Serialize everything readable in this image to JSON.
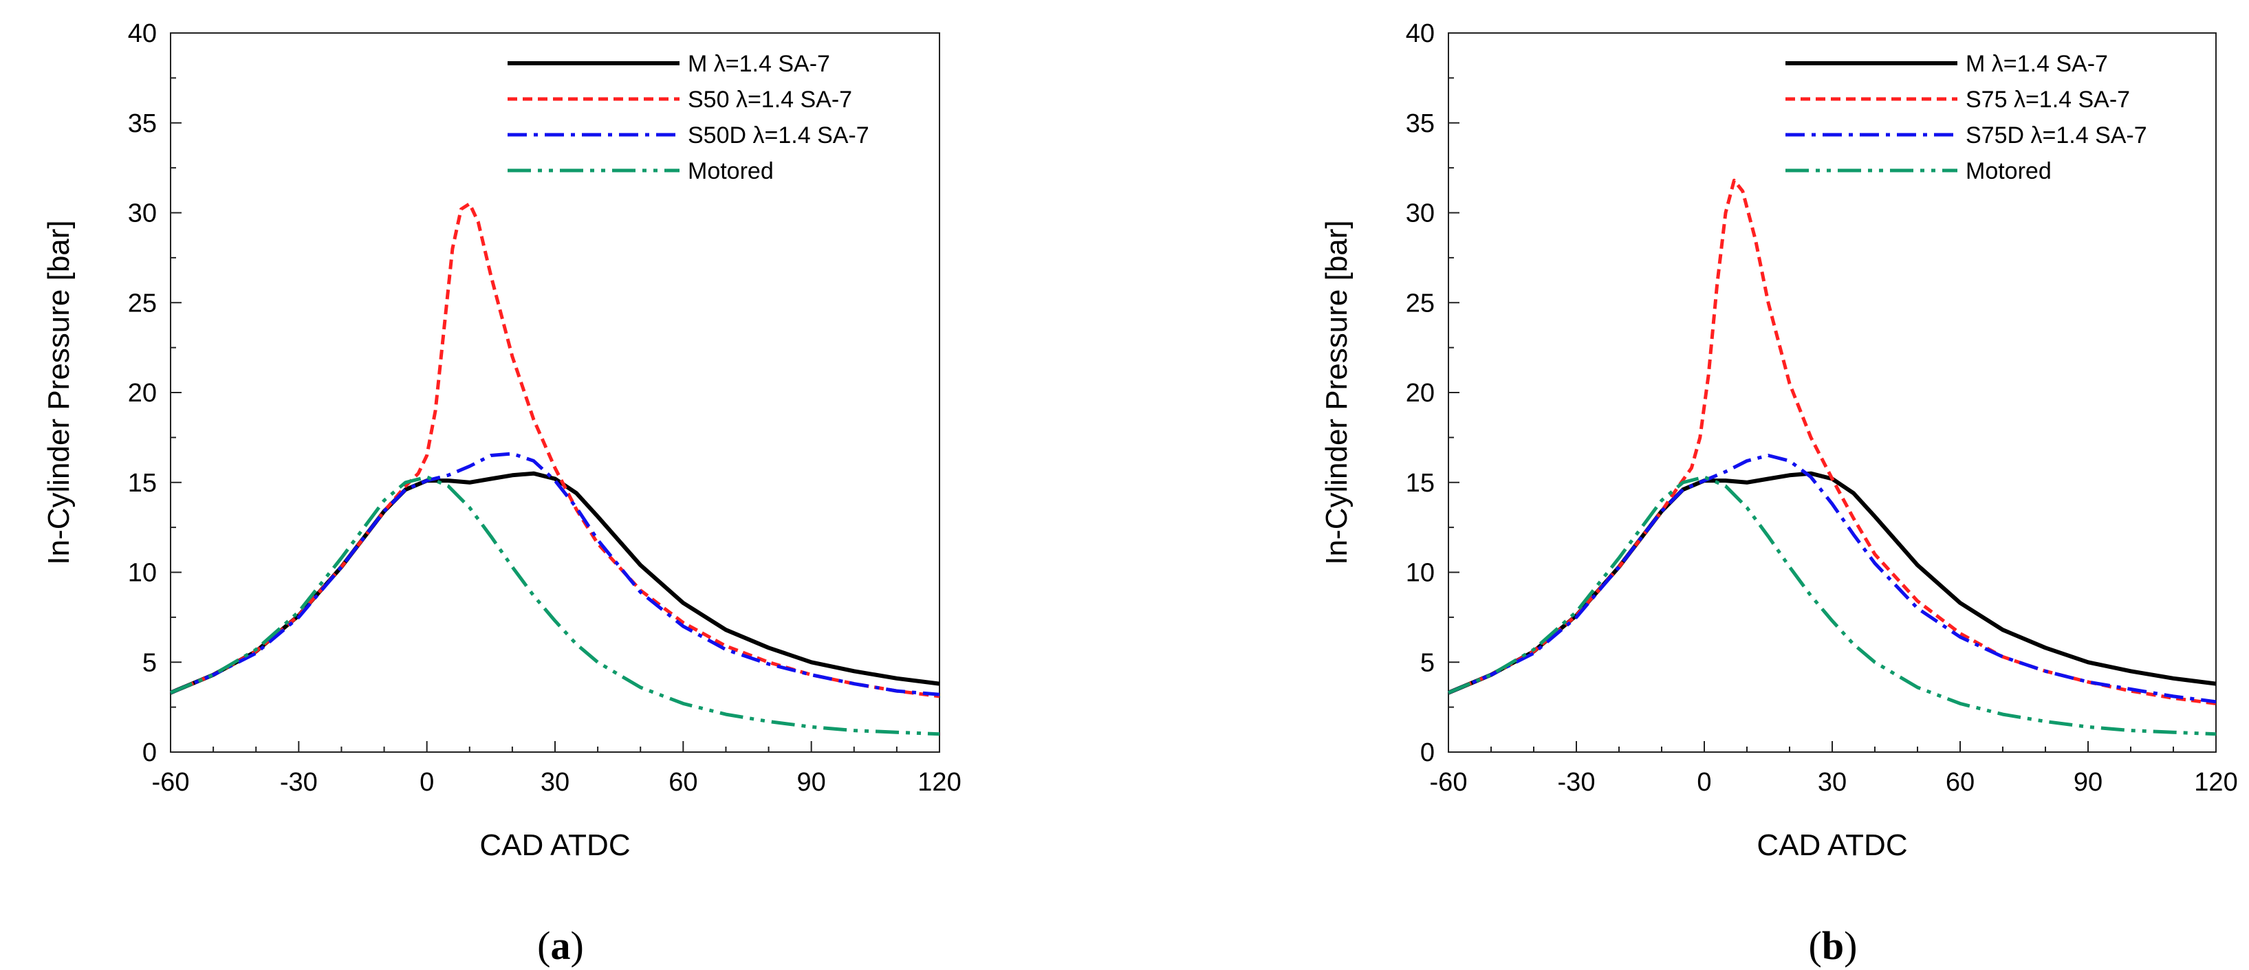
{
  "chart_data": [
    {
      "type": "line",
      "panel": "(a)",
      "caption_letter": "a",
      "xlabel": "CAD ATDC",
      "ylabel": "In-Cylinder Pressure [bar]",
      "xlim": [
        -60,
        120
      ],
      "ylim": [
        0,
        40
      ],
      "xticks": [
        -60,
        -30,
        0,
        30,
        60,
        90,
        120
      ],
      "yticks": [
        0,
        5,
        10,
        15,
        20,
        25,
        30,
        35,
        40
      ],
      "legend_position": "top-right",
      "series": [
        {
          "name": "M λ=1.4 SA-7",
          "color": "#000000",
          "style": "solid",
          "x": [
            -60,
            -50,
            -40,
            -30,
            -20,
            -10,
            -5,
            0,
            5,
            10,
            15,
            20,
            25,
            30,
            35,
            40,
            50,
            60,
            70,
            80,
            90,
            100,
            110,
            120
          ],
          "y": [
            3.3,
            4.3,
            5.6,
            7.6,
            10.3,
            13.4,
            14.6,
            15.1,
            15.1,
            15.0,
            15.2,
            15.4,
            15.5,
            15.2,
            14.4,
            13.1,
            10.4,
            8.3,
            6.8,
            5.8,
            5.0,
            4.5,
            4.1,
            3.8
          ]
        },
        {
          "name": "S50 λ=1.4 SA-7",
          "color": "#ff2020",
          "style": "dashed",
          "x": [
            -60,
            -50,
            -40,
            -30,
            -20,
            -10,
            -5,
            -2,
            0,
            2,
            4,
            6,
            8,
            10,
            12,
            15,
            20,
            25,
            30,
            35,
            40,
            50,
            60,
            70,
            80,
            90,
            100,
            110,
            120
          ],
          "y": [
            3.3,
            4.3,
            5.6,
            7.6,
            10.3,
            13.4,
            14.8,
            15.5,
            16.5,
            19.0,
            23.5,
            28.0,
            30.2,
            30.5,
            29.5,
            26.5,
            22.0,
            18.5,
            15.8,
            13.5,
            11.6,
            9.0,
            7.2,
            5.9,
            5.0,
            4.3,
            3.8,
            3.4,
            3.1
          ]
        },
        {
          "name": "S50D λ=1.4 SA-7",
          "color": "#1010ee",
          "style": "dashdot",
          "x": [
            -60,
            -50,
            -40,
            -30,
            -20,
            -10,
            -5,
            0,
            5,
            10,
            15,
            20,
            25,
            30,
            35,
            40,
            50,
            60,
            70,
            80,
            90,
            100,
            110,
            120
          ],
          "y": [
            3.3,
            4.3,
            5.5,
            7.5,
            10.3,
            13.4,
            14.6,
            15.1,
            15.4,
            15.9,
            16.5,
            16.6,
            16.2,
            15.1,
            13.6,
            11.8,
            8.9,
            7.0,
            5.7,
            4.9,
            4.3,
            3.8,
            3.4,
            3.2
          ]
        },
        {
          "name": "Motored",
          "color": "#0f9a6a",
          "style": "dashdotdot",
          "x": [
            -60,
            -50,
            -40,
            -30,
            -20,
            -10,
            -5,
            0,
            5,
            10,
            15,
            20,
            25,
            30,
            35,
            40,
            50,
            60,
            70,
            80,
            90,
            100,
            110,
            120
          ],
          "y": [
            3.3,
            4.3,
            5.7,
            7.8,
            10.8,
            14.0,
            15.0,
            15.3,
            14.8,
            13.6,
            12.0,
            10.3,
            8.7,
            7.3,
            6.0,
            5.0,
            3.6,
            2.7,
            2.1,
            1.7,
            1.4,
            1.2,
            1.1,
            1.0
          ]
        }
      ]
    },
    {
      "type": "line",
      "panel": "(b)",
      "caption_letter": "b",
      "xlabel": "CAD ATDC",
      "ylabel": "In-Cylinder Pressure [bar]",
      "xlim": [
        -60,
        120
      ],
      "ylim": [
        0,
        40
      ],
      "xticks": [
        -60,
        -30,
        0,
        30,
        60,
        90,
        120
      ],
      "yticks": [
        0,
        5,
        10,
        15,
        20,
        25,
        30,
        35,
        40
      ],
      "legend_position": "top-right",
      "series": [
        {
          "name": "M λ=1.4 SA-7",
          "color": "#000000",
          "style": "solid",
          "x": [
            -60,
            -50,
            -40,
            -30,
            -20,
            -10,
            -5,
            0,
            5,
            10,
            15,
            20,
            25,
            30,
            35,
            40,
            50,
            60,
            70,
            80,
            90,
            100,
            110,
            120
          ],
          "y": [
            3.3,
            4.3,
            5.6,
            7.6,
            10.3,
            13.4,
            14.6,
            15.1,
            15.1,
            15.0,
            15.2,
            15.4,
            15.5,
            15.2,
            14.4,
            13.1,
            10.4,
            8.3,
            6.8,
            5.8,
            5.0,
            4.5,
            4.1,
            3.8
          ]
        },
        {
          "name": "S75 λ=1.4 SA-7",
          "color": "#ff2020",
          "style": "dashed",
          "x": [
            -60,
            -50,
            -40,
            -30,
            -20,
            -10,
            -6,
            -3,
            -1,
            1,
            3,
            5,
            7,
            9,
            12,
            15,
            20,
            25,
            30,
            35,
            40,
            50,
            60,
            70,
            80,
            90,
            100,
            110,
            120
          ],
          "y": [
            3.3,
            4.3,
            5.6,
            7.6,
            10.3,
            13.4,
            14.8,
            15.8,
            17.5,
            21.0,
            26.0,
            30.0,
            31.8,
            31.2,
            28.5,
            25.0,
            20.5,
            17.5,
            15.2,
            13.0,
            11.0,
            8.4,
            6.6,
            5.3,
            4.5,
            3.9,
            3.4,
            3.0,
            2.7
          ]
        },
        {
          "name": "S75D λ=1.4 SA-7",
          "color": "#1010ee",
          "style": "dashdot",
          "x": [
            -60,
            -50,
            -40,
            -30,
            -20,
            -10,
            -5,
            0,
            5,
            10,
            15,
            20,
            25,
            30,
            35,
            40,
            50,
            60,
            70,
            80,
            90,
            100,
            110,
            120
          ],
          "y": [
            3.3,
            4.3,
            5.5,
            7.5,
            10.3,
            13.4,
            14.6,
            15.1,
            15.6,
            16.2,
            16.5,
            16.2,
            15.3,
            13.8,
            12.1,
            10.5,
            8.0,
            6.4,
            5.3,
            4.5,
            3.9,
            3.5,
            3.1,
            2.8
          ]
        },
        {
          "name": "Motored",
          "color": "#0f9a6a",
          "style": "dashdotdot",
          "x": [
            -60,
            -50,
            -40,
            -30,
            -20,
            -10,
            -5,
            0,
            5,
            10,
            15,
            20,
            25,
            30,
            35,
            40,
            50,
            60,
            70,
            80,
            90,
            100,
            110,
            120
          ],
          "y": [
            3.3,
            4.3,
            5.7,
            7.8,
            10.8,
            14.0,
            15.0,
            15.3,
            14.8,
            13.6,
            12.0,
            10.3,
            8.7,
            7.3,
            6.0,
            5.0,
            3.6,
            2.7,
            2.1,
            1.7,
            1.4,
            1.2,
            1.1,
            1.0
          ]
        }
      ]
    }
  ]
}
